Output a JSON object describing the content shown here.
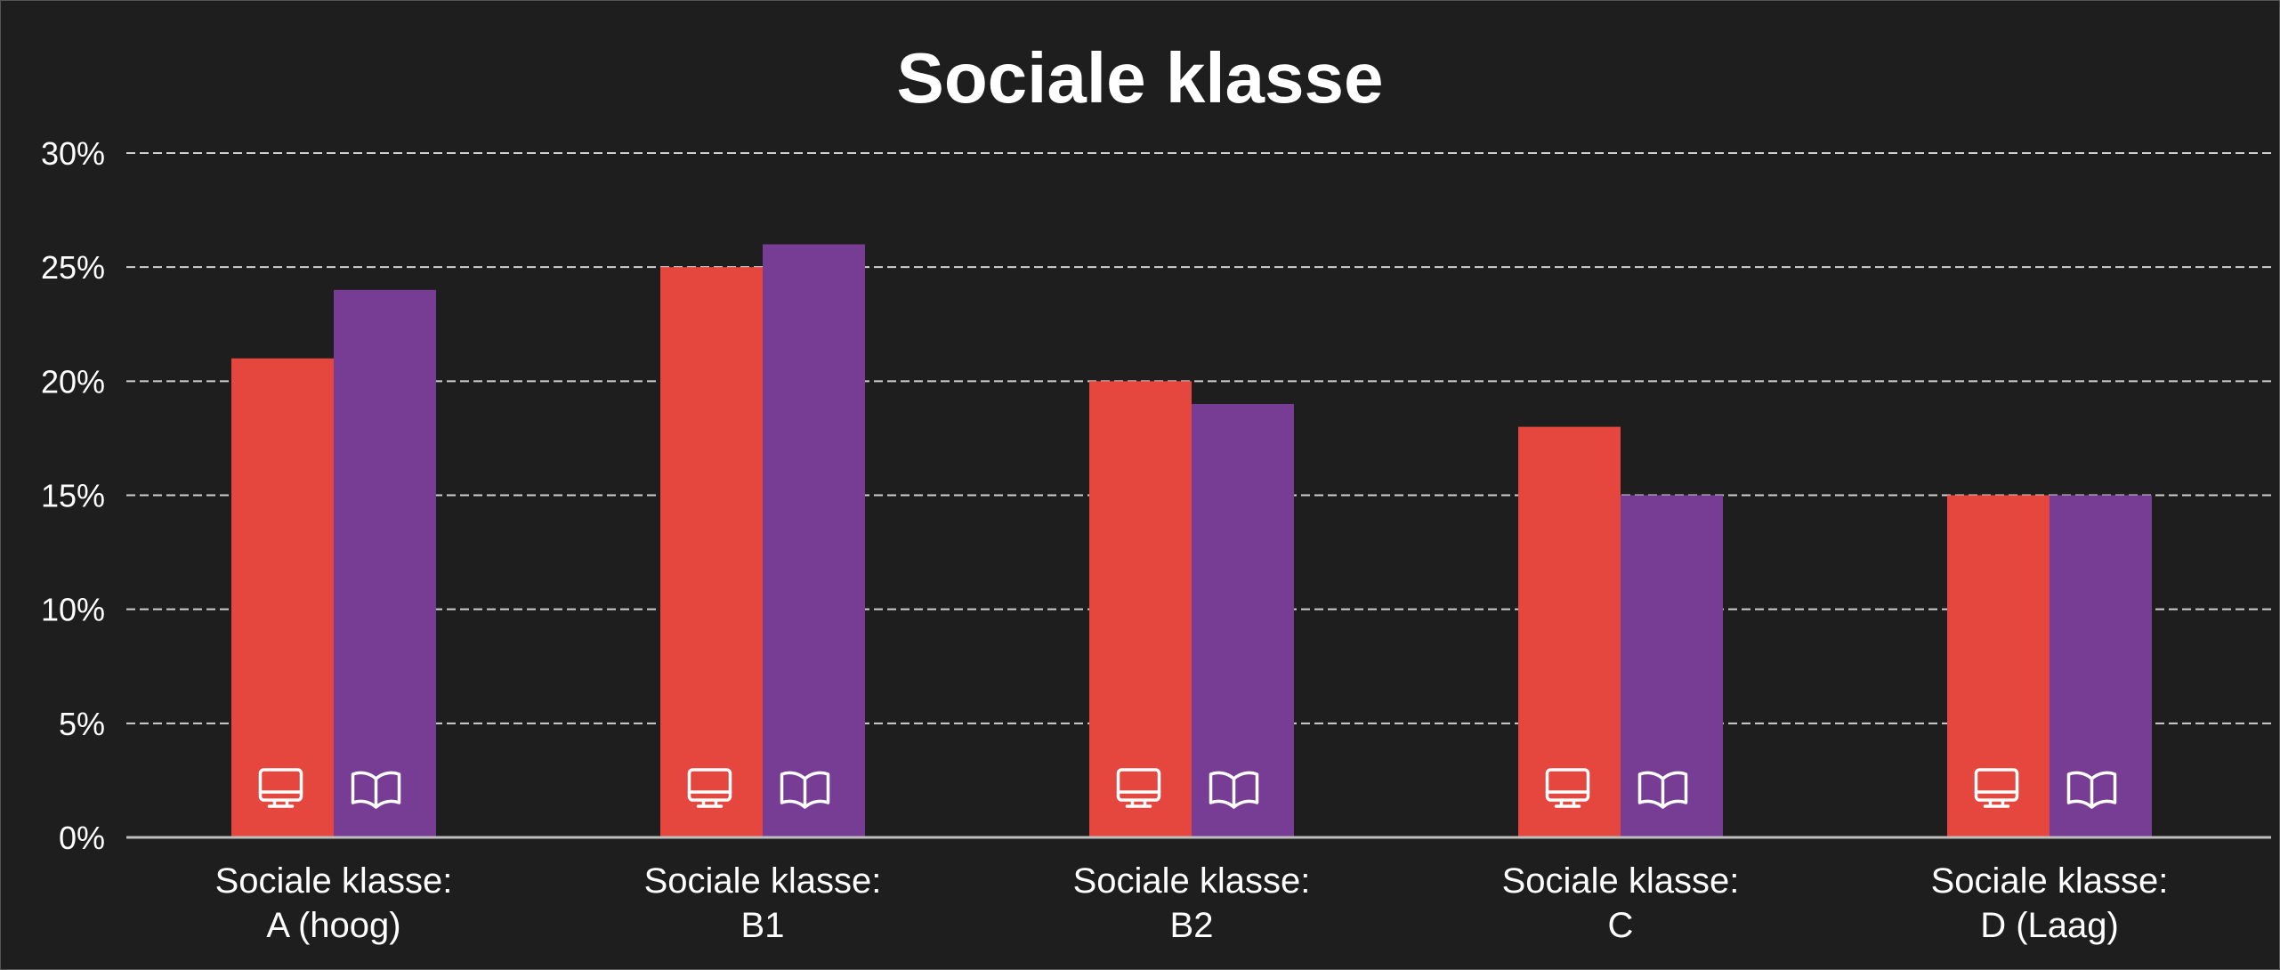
{
  "chart_data": {
    "type": "bar",
    "title": "Sociale klasse",
    "categories": [
      [
        "Sociale klasse:",
        "A (hoog)"
      ],
      [
        "Sociale klasse:",
        "B1"
      ],
      [
        "Sociale klasse:",
        "B2"
      ],
      [
        "Sociale klasse:",
        "C"
      ],
      [
        "Sociale klasse:",
        "D (Laag)"
      ]
    ],
    "series": [
      {
        "icon": "monitor-icon",
        "color": "#e5463e",
        "values": [
          21,
          25,
          20,
          18,
          15
        ]
      },
      {
        "icon": "book-icon",
        "color": "#773c94",
        "values": [
          24,
          26,
          19,
          15,
          15
        ]
      }
    ],
    "yticks": [
      "0%",
      "5%",
      "10%",
      "15%",
      "20%",
      "25%",
      "30%"
    ],
    "ylim": [
      0,
      30
    ],
    "grid": true,
    "legend": "none",
    "background": "#1e1e1e"
  }
}
